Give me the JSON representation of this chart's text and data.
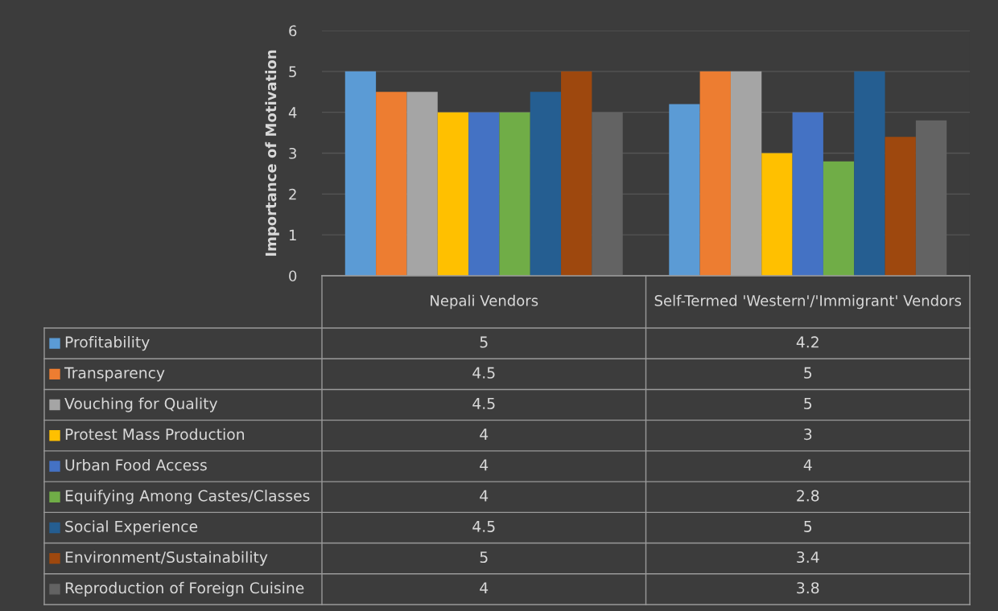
{
  "chart_data": {
    "type": "bar",
    "ylabel": "Importance of Motivation",
    "categories": [
      "Nepali Vendors",
      "Self-Termed 'Western'/'Immigrant' Vendors"
    ],
    "series": [
      {
        "name": "Profitability",
        "color": "#5b9bd5",
        "values": [
          5,
          4.2
        ]
      },
      {
        "name": "Transparency",
        "color": "#ed7d31",
        "values": [
          4.5,
          5
        ]
      },
      {
        "name": "Vouching for Quality",
        "color": "#a5a5a5",
        "values": [
          4.5,
          5
        ]
      },
      {
        "name": "Protest Mass Production",
        "color": "#ffc000",
        "values": [
          4,
          3
        ]
      },
      {
        "name": "Urban Food Access",
        "color": "#4472c4",
        "values": [
          4,
          4
        ]
      },
      {
        "name": "Equifying Among Castes/Classes",
        "color": "#70ad47",
        "values": [
          4,
          2.8
        ]
      },
      {
        "name": "Social Experience",
        "color": "#255e91",
        "values": [
          4.5,
          5
        ]
      },
      {
        "name": "Environment/Sustainability",
        "color": "#9e480e",
        "values": [
          5,
          3.4
        ]
      },
      {
        "name": "Reproduction of Foreign Cuisine",
        "color": "#636363",
        "values": [
          4,
          3.8
        ]
      }
    ],
    "ylim": [
      0,
      6
    ],
    "yticks": [
      0,
      1,
      2,
      3,
      4,
      5,
      6
    ],
    "grid": "y",
    "legend": "bottom",
    "data_labels": true
  }
}
